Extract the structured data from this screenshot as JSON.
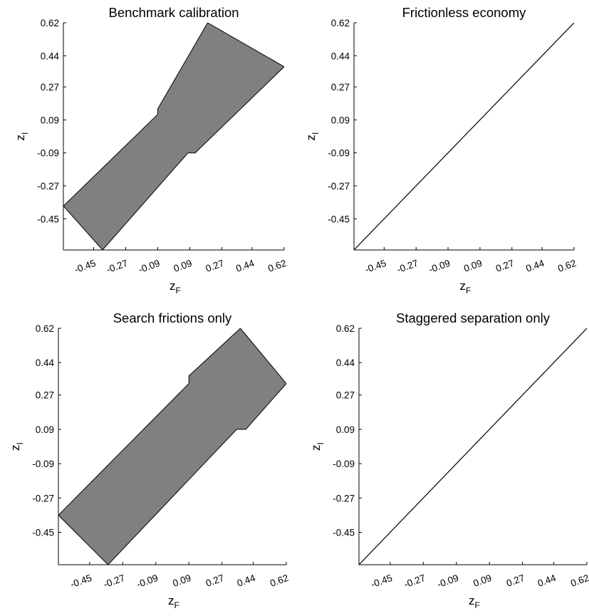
{
  "chart_data": [
    {
      "type": "area",
      "title": "Benchmark calibration",
      "xlabel": "z",
      "xlabel_sub": "F",
      "ylabel": "z",
      "ylabel_sub": "I",
      "xticks": [
        "-0.45",
        "-0.27",
        "-0.09",
        "0.09",
        "0.27",
        "0.44",
        "0.62"
      ],
      "yticks": [
        "0.62",
        "0.44",
        "0.27",
        "0.09",
        "-0.09",
        "-0.27",
        "-0.45"
      ],
      "xlim": [
        -0.62,
        0.62
      ],
      "ylim": [
        -0.62,
        0.62
      ],
      "fill_color": "#808080",
      "region": {
        "upper": [
          [
            -0.62,
            -0.38
          ],
          [
            -0.09,
            0.12
          ],
          [
            -0.09,
            0.15
          ],
          [
            0.19,
            0.62
          ]
        ],
        "lower": [
          [
            -0.4,
            -0.62
          ],
          [
            0.08,
            -0.09
          ],
          [
            0.12,
            -0.09
          ],
          [
            0.62,
            0.38
          ]
        ]
      }
    },
    {
      "type": "line",
      "title": "Frictionless economy",
      "xlabel": "z",
      "xlabel_sub": "F",
      "ylabel": "z",
      "ylabel_sub": "I",
      "xticks": [
        "-0.45",
        "-0.27",
        "-0.09",
        "0.09",
        "0.27",
        "0.44",
        "0.62"
      ],
      "yticks": [
        "0.62",
        "0.44",
        "0.27",
        "0.09",
        "-0.09",
        "-0.27",
        "-0.45"
      ],
      "xlim": [
        -0.62,
        0.62
      ],
      "ylim": [
        -0.62,
        0.62
      ],
      "line": [
        [
          -0.62,
          -0.62
        ],
        [
          0.62,
          0.62
        ]
      ]
    },
    {
      "type": "area",
      "title": "Search frictions only",
      "xlabel": "z",
      "xlabel_sub": "F",
      "ylabel": "z",
      "ylabel_sub": "I",
      "xticks": [
        "-0.45",
        "-0.27",
        "-0.09",
        "0.09",
        "0.27",
        "0.44",
        "0.62"
      ],
      "yticks": [
        "0.62",
        "0.44",
        "0.27",
        "0.09",
        "-0.09",
        "-0.27",
        "-0.45"
      ],
      "xlim": [
        -0.62,
        0.62
      ],
      "ylim": [
        -0.62,
        0.62
      ],
      "fill_color": "#808080",
      "region": {
        "upper": [
          [
            -0.62,
            -0.36
          ],
          [
            0.09,
            0.33
          ],
          [
            0.09,
            0.37
          ],
          [
            0.37,
            0.62
          ]
        ],
        "lower": [
          [
            -0.35,
            -0.62
          ],
          [
            0.35,
            0.09
          ],
          [
            0.4,
            0.09
          ],
          [
            0.62,
            0.33
          ]
        ]
      }
    },
    {
      "type": "line",
      "title": "Staggered separation only",
      "xlabel": "z",
      "xlabel_sub": "F",
      "ylabel": "z",
      "ylabel_sub": "I",
      "xticks": [
        "-0.45",
        "-0.27",
        "-0.09",
        "0.09",
        "0.27",
        "0.44",
        "0.62"
      ],
      "yticks": [
        "0.62",
        "0.44",
        "0.27",
        "0.09",
        "-0.09",
        "-0.27",
        "-0.45"
      ],
      "xlim": [
        -0.62,
        0.62
      ],
      "ylim": [
        -0.62,
        0.62
      ],
      "line": [
        [
          -0.62,
          -0.62
        ],
        [
          0.62,
          0.62
        ]
      ]
    }
  ]
}
